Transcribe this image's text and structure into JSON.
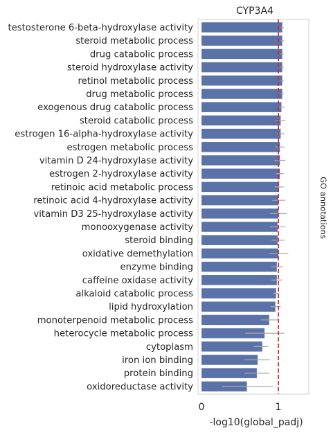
{
  "chart_data": {
    "type": "bar",
    "orientation": "horizontal",
    "title": "CYP3A4",
    "xlabel": "-log10(global_padj)",
    "side_label": "GO annotations",
    "xlim": [
      0,
      1.38
    ],
    "xticks": [
      0,
      1
    ],
    "threshold_line": {
      "x": 1.0,
      "color": "#d62728",
      "style": "dashed"
    },
    "bar_color": "#5a72a8",
    "error_color": "#a9a9a9",
    "grid": false,
    "categories": [
      "testosterone 6-beta-hydroxylase activity",
      "steroid metabolic process",
      "drug catabolic process",
      "steroid hydroxylase activity",
      "retinol metabolic process",
      "drug metabolic process",
      "exogenous drug catabolic process",
      "steroid catabolic process",
      "estrogen 16-alpha-hydroxylase activity",
      "estrogen metabolic process",
      "vitamin D 24-hydroxylase activity",
      "estrogen 2-hydroxylase activity",
      "retinoic acid metabolic process",
      "retinoic acid 4-hydroxylase activity",
      "vitamin D3 25-hydroxylase activity",
      "monooxygenase activity",
      "steroid binding",
      "oxidative demethylation",
      "enzyme binding",
      "caffeine oxidase activity",
      "alkaloid catabolic process",
      "lipid hydroxylation",
      "monoterpenoid metabolic process",
      "heterocycle metabolic process",
      "cytoplasm",
      "iron ion binding",
      "protein binding",
      "oxidoreductase activity"
    ],
    "values": [
      1.05,
      1.05,
      1.05,
      1.05,
      1.05,
      1.05,
      1.04,
      1.03,
      1.03,
      1.02,
      1.02,
      1.02,
      1.01,
      1.0,
      1.0,
      0.99,
      0.99,
      1.0,
      0.98,
      0.98,
      0.97,
      0.96,
      0.88,
      0.82,
      0.79,
      0.73,
      0.72,
      0.59
    ],
    "errors": [
      [
        1.03,
        1.07
      ],
      [
        1.03,
        1.07
      ],
      [
        1.03,
        1.07
      ],
      [
        1.03,
        1.07
      ],
      [
        1.03,
        1.07
      ],
      [
        1.03,
        1.07
      ],
      [
        1.0,
        1.08
      ],
      [
        0.97,
        1.09
      ],
      [
        0.98,
        1.08
      ],
      [
        0.96,
        1.08
      ],
      [
        0.95,
        1.09
      ],
      [
        0.97,
        1.07
      ],
      [
        0.95,
        1.07
      ],
      [
        0.92,
        1.09
      ],
      [
        0.89,
        1.11
      ],
      [
        0.89,
        1.09
      ],
      [
        0.91,
        1.08
      ],
      [
        0.88,
        1.13
      ],
      [
        0.91,
        1.06
      ],
      [
        0.91,
        1.05
      ],
      [
        0.93,
        1.01
      ],
      [
        0.9,
        1.03
      ],
      [
        0.77,
        1.0
      ],
      [
        0.57,
        1.08
      ],
      [
        0.68,
        0.87
      ],
      [
        0.56,
        0.89
      ],
      [
        0.56,
        0.88
      ],
      [
        0.27,
        0.93
      ]
    ]
  }
}
